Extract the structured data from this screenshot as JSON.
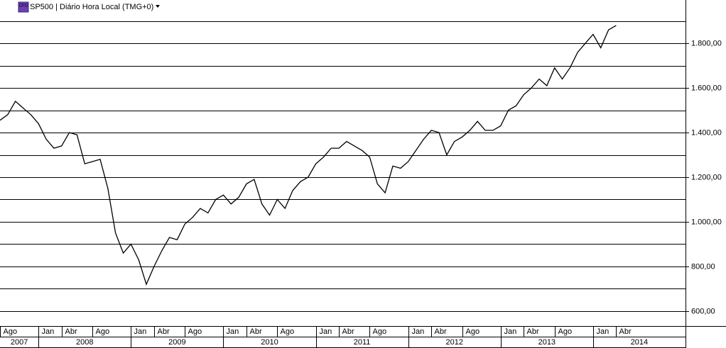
{
  "chart_data": {
    "type": "line",
    "title": "SP500 | Diário Hora Local (TMG+0)",
    "icon_text": "CFD",
    "color": "#000000",
    "grid": true,
    "x": [
      "2007-08",
      "2007-09",
      "2007-10",
      "2007-11",
      "2007-12",
      "2008-01",
      "2008-02",
      "2008-03",
      "2008-04",
      "2008-05",
      "2008-06",
      "2008-07",
      "2008-08",
      "2008-09",
      "2008-10",
      "2008-11",
      "2008-12",
      "2009-01",
      "2009-02",
      "2009-03",
      "2009-04",
      "2009-05",
      "2009-06",
      "2009-07",
      "2009-08",
      "2009-09",
      "2009-10",
      "2009-11",
      "2009-12",
      "2010-01",
      "2010-02",
      "2010-03",
      "2010-04",
      "2010-05",
      "2010-06",
      "2010-07",
      "2010-08",
      "2010-09",
      "2010-10",
      "2010-11",
      "2010-12",
      "2011-01",
      "2011-02",
      "2011-03",
      "2011-04",
      "2011-05",
      "2011-06",
      "2011-07",
      "2011-08",
      "2011-09",
      "2011-10",
      "2011-11",
      "2011-12",
      "2012-01",
      "2012-02",
      "2012-03",
      "2012-04",
      "2012-05",
      "2012-06",
      "2012-07",
      "2012-08",
      "2012-09",
      "2012-10",
      "2012-11",
      "2012-12",
      "2013-01",
      "2013-02",
      "2013-03",
      "2013-04",
      "2013-05",
      "2013-06",
      "2013-07",
      "2013-08",
      "2013-09",
      "2013-10",
      "2013-11",
      "2013-12",
      "2014-01",
      "2014-02",
      "2014-03",
      "2014-04"
    ],
    "values": [
      1455,
      1480,
      1540,
      1510,
      1480,
      1440,
      1370,
      1330,
      1340,
      1400,
      1390,
      1260,
      1270,
      1280,
      1150,
      950,
      860,
      900,
      830,
      720,
      800,
      870,
      930,
      920,
      990,
      1020,
      1060,
      1040,
      1100,
      1120,
      1080,
      1110,
      1170,
      1190,
      1080,
      1030,
      1100,
      1060,
      1140,
      1180,
      1200,
      1260,
      1290,
      1330,
      1330,
      1360,
      1340,
      1320,
      1290,
      1170,
      1130,
      1250,
      1240,
      1270,
      1320,
      1370,
      1410,
      1400,
      1300,
      1360,
      1380,
      1410,
      1450,
      1410,
      1410,
      1430,
      1500,
      1520,
      1570,
      1600,
      1640,
      1610,
      1690,
      1640,
      1690,
      1760,
      1800,
      1840,
      1780,
      1860,
      1880
    ],
    "xlim": [
      "2007-08",
      "2015-01"
    ],
    "xticks": [
      {
        "value": "2007-08",
        "label": "Ago"
      },
      {
        "value": "2008-01",
        "label": "Jan"
      },
      {
        "value": "2008-04",
        "label": "Abr"
      },
      {
        "value": "2008-08",
        "label": "Ago"
      },
      {
        "value": "2009-01",
        "label": "Jan"
      },
      {
        "value": "2009-04",
        "label": "Abr"
      },
      {
        "value": "2009-08",
        "label": "Ago"
      },
      {
        "value": "2010-01",
        "label": "Jan"
      },
      {
        "value": "2010-04",
        "label": "Abr"
      },
      {
        "value": "2010-08",
        "label": "Ago"
      },
      {
        "value": "2011-01",
        "label": "Jan"
      },
      {
        "value": "2011-04",
        "label": "Abr"
      },
      {
        "value": "2011-08",
        "label": "Ago"
      },
      {
        "value": "2012-01",
        "label": "Jan"
      },
      {
        "value": "2012-04",
        "label": "Abr"
      },
      {
        "value": "2012-08",
        "label": "Ago"
      },
      {
        "value": "2013-01",
        "label": "Jan"
      },
      {
        "value": "2013-04",
        "label": "Abr"
      },
      {
        "value": "2013-08",
        "label": "Ago"
      },
      {
        "value": "2014-01",
        "label": "Jan"
      },
      {
        "value": "2014-04",
        "label": "Abr"
      }
    ],
    "years": [
      "2007",
      "2008",
      "2009",
      "2010",
      "2011",
      "2012",
      "2013",
      "2014"
    ],
    "ylim": [
      533,
      1994
    ],
    "yticks": [
      {
        "value": 600,
        "label": "600,00"
      },
      {
        "value": 800,
        "label": "800,00"
      },
      {
        "value": 1000,
        "label": "1.000,00"
      },
      {
        "value": 1200,
        "label": "1.200,00"
      },
      {
        "value": 1400,
        "label": "1.400,00"
      },
      {
        "value": 1600,
        "label": "1.600,00"
      },
      {
        "value": 1800,
        "label": "1.800,00"
      }
    ],
    "minor_yticks": [
      700,
      900,
      1100,
      1300,
      1500,
      1700,
      1900
    ]
  }
}
